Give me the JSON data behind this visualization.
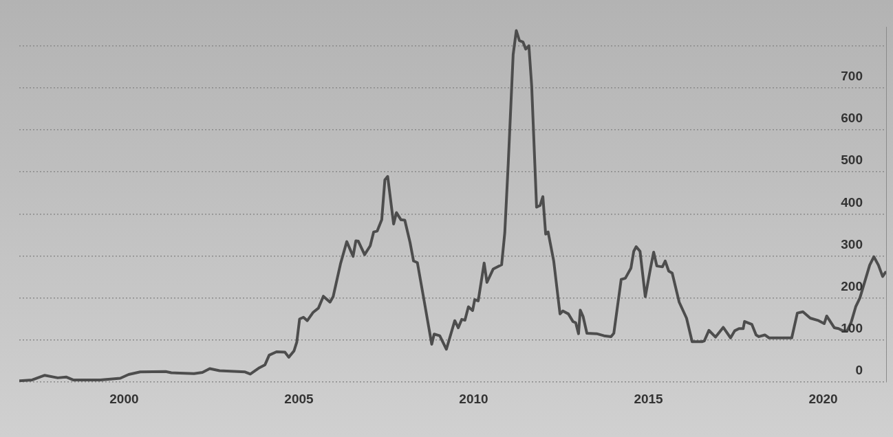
{
  "chart_data": {
    "type": "line",
    "x": [
      1997.02,
      1997.37,
      1997.73,
      1998.1,
      1998.34,
      1998.54,
      1999.32,
      1999.89,
      2000.13,
      2000.46,
      2001.19,
      2001.35,
      2002.0,
      2002.24,
      2002.45,
      2002.73,
      2003.46,
      2003.61,
      2003.87,
      2004.03,
      2004.15,
      2004.36,
      2004.6,
      2004.71,
      2004.86,
      2004.94,
      2005.02,
      2005.13,
      2005.24,
      2005.41,
      2005.56,
      2005.7,
      2005.89,
      2005.98,
      2006.19,
      2006.37,
      2006.55,
      2006.63,
      2006.7,
      2006.88,
      2007.04,
      2007.14,
      2007.24,
      2007.37,
      2007.46,
      2007.54,
      2007.71,
      2007.79,
      2007.92,
      2008.03,
      2008.18,
      2008.28,
      2008.39,
      2008.59,
      2008.8,
      2008.87,
      2009.03,
      2009.22,
      2009.46,
      2009.56,
      2009.66,
      2009.75,
      2009.85,
      2009.97,
      2010.03,
      2010.13,
      2010.3,
      2010.38,
      2010.56,
      2010.8,
      2010.89,
      2010.99,
      2011.13,
      2011.22,
      2011.31,
      2011.41,
      2011.49,
      2011.58,
      2011.66,
      2011.8,
      2011.9,
      2011.98,
      2012.06,
      2012.13,
      2012.29,
      2012.47,
      2012.55,
      2012.71,
      2012.84,
      2012.92,
      2013.0,
      2013.05,
      2013.13,
      2013.24,
      2013.52,
      2013.73,
      2013.93,
      2014.01,
      2014.22,
      2014.34,
      2014.5,
      2014.58,
      2014.65,
      2014.76,
      2014.91,
      2015.06,
      2015.15,
      2015.24,
      2015.4,
      2015.48,
      2015.58,
      2015.68,
      2015.88,
      2016.09,
      2016.25,
      2016.53,
      2016.6,
      2016.73,
      2016.92,
      2017.14,
      2017.35,
      2017.47,
      2017.59,
      2017.71,
      2017.75,
      2017.96,
      2018.08,
      2018.16,
      2018.33,
      2018.45,
      2019.1,
      2019.26,
      2019.42,
      2019.63,
      2019.87,
      2020.03,
      2020.1,
      2020.32,
      2020.44,
      2020.56,
      2020.68,
      2020.8,
      2020.93,
      2021.05,
      2021.33,
      2021.45,
      2021.58,
      2021.7,
      2021.78
    ],
    "series": [
      {
        "color": "#4d4d4d",
        "values": [
          3,
          5,
          16,
          10,
          12,
          5,
          5,
          9,
          18,
          24,
          25,
          22,
          20,
          23,
          32,
          27,
          24,
          19,
          34,
          41,
          64,
          72,
          71,
          59,
          74,
          95,
          150,
          154,
          146,
          166,
          176,
          204,
          190,
          203,
          281,
          334,
          299,
          336,
          335,
          303,
          324,
          357,
          359,
          386,
          481,
          489,
          376,
          403,
          386,
          385,
          332,
          288,
          284,
          190,
          90,
          114,
          110,
          78,
          146,
          129,
          149,
          147,
          179,
          170,
          196,
          193,
          283,
          237,
          269,
          279,
          355,
          521,
          779,
          836,
          812,
          809,
          792,
          800,
          704,
          416,
          420,
          441,
          352,
          357,
          288,
          162,
          169,
          162,
          144,
          141,
          115,
          171,
          156,
          116,
          115,
          110,
          108,
          116,
          244,
          247,
          271,
          311,
          322,
          311,
          203,
          271,
          309,
          276,
          274,
          288,
          264,
          259,
          190,
          152,
          96,
          96,
          98,
          123,
          107,
          130,
          105,
          122,
          127,
          127,
          144,
          137,
          112,
          108,
          112,
          105,
          105,
          164,
          167,
          152,
          146,
          139,
          157,
          129,
          127,
          122,
          121,
          142,
          179,
          200,
          278,
          298,
          278,
          251,
          261
        ]
      }
    ],
    "xlim": [
      1997,
      2021.8
    ],
    "xticks": [
      2000,
      2005,
      2010,
      2015,
      2020
    ],
    "ylim": [
      0,
      845
    ],
    "yticks": [
      0,
      100,
      200,
      300,
      400,
      500,
      600,
      700,
      {
        "value": 800,
        "label": null
      }
    ],
    "grid": "y",
    "legend": false,
    "marker": "none",
    "line_style": "solid"
  }
}
